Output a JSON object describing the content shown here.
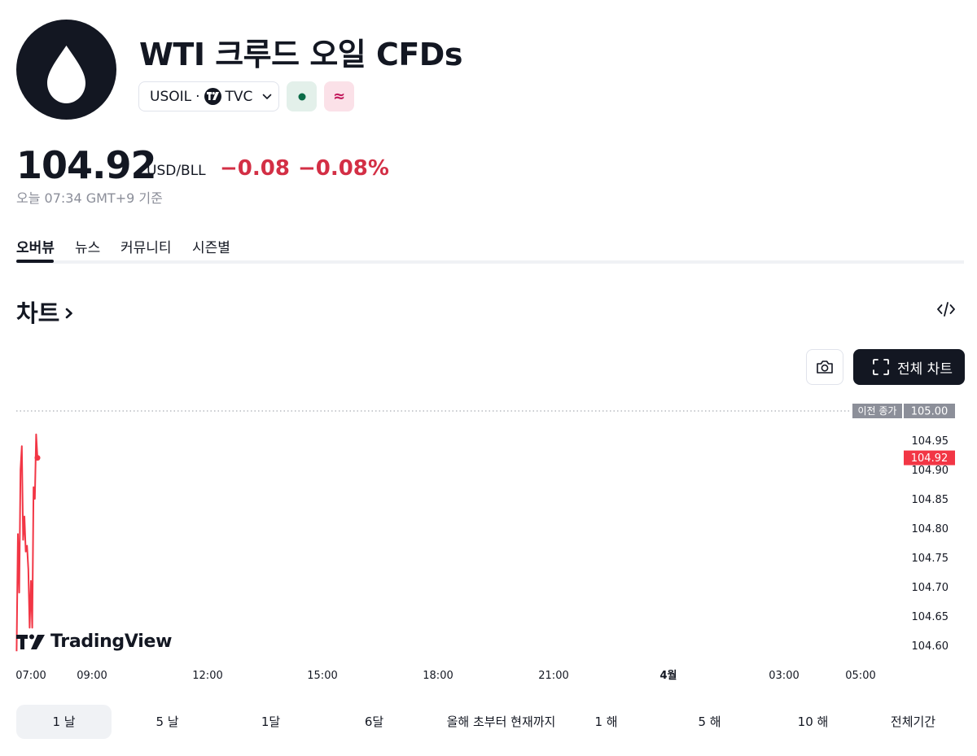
{
  "header": {
    "title": "WTI 크루드 오일 CFDs",
    "symbol": "USOIL",
    "separator": "·",
    "exchange": "TVC",
    "market_status_icon": "green-dot-icon",
    "delayed_icon": "approx-icon",
    "delayed_symbol": "≈"
  },
  "quote": {
    "price": "104.92",
    "currency": "USD/BLL",
    "change": "−0.08",
    "change_percent": "−0.08%",
    "as_of": "오늘 07:34 GMT+9 기준",
    "change_color": "#d32f45"
  },
  "tabs": [
    {
      "label": "오버뷰",
      "active": true
    },
    {
      "label": "뉴스",
      "active": false
    },
    {
      "label": "커뮤니티",
      "active": false
    },
    {
      "label": "시즌별",
      "active": false
    }
  ],
  "chart_section": {
    "title": "차트",
    "full_chart_label": "전체 차트"
  },
  "chart_data": {
    "type": "line",
    "price_axis": [
      "105.00",
      "104.95",
      "104.90",
      "104.85",
      "104.80",
      "104.75",
      "104.70",
      "104.65",
      "104.60"
    ],
    "time_axis": [
      {
        "label": "07:00",
        "bold": false
      },
      {
        "label": "09:00",
        "bold": false
      },
      {
        "label": "12:00",
        "bold": false
      },
      {
        "label": "15:00",
        "bold": false
      },
      {
        "label": "18:00",
        "bold": false
      },
      {
        "label": "21:00",
        "bold": false
      },
      {
        "label": "4월",
        "bold": true
      },
      {
        "label": "03:00",
        "bold": false
      },
      {
        "label": "05:00",
        "bold": false
      }
    ],
    "prev_close_label": "이전 종가",
    "prev_close_value": "105.00",
    "last_price_label": "104.92",
    "series": [
      {
        "color": "#f23645",
        "points": [
          {
            "x": "06:59",
            "y": 104.59
          },
          {
            "x": "07:00",
            "y": 104.79
          },
          {
            "x": "07:01",
            "y": 104.69
          },
          {
            "x": "07:02",
            "y": 104.9
          },
          {
            "x": "07:03",
            "y": 104.94
          },
          {
            "x": "07:04",
            "y": 104.78
          },
          {
            "x": "07:05",
            "y": 104.82
          },
          {
            "x": "07:06",
            "y": 104.76
          },
          {
            "x": "07:07",
            "y": 104.77
          },
          {
            "x": "07:08",
            "y": 104.73
          },
          {
            "x": "07:09",
            "y": 104.63
          },
          {
            "x": "07:10",
            "y": 104.71
          },
          {
            "x": "07:11",
            "y": 104.63
          },
          {
            "x": "07:12",
            "y": 104.87
          },
          {
            "x": "07:13",
            "y": 104.85
          },
          {
            "x": "07:14",
            "y": 104.96
          },
          {
            "x": "07:15",
            "y": 104.92
          }
        ]
      }
    ],
    "line_color": "#f23645",
    "ylim": [
      104.58,
      105.0
    ]
  },
  "branding": {
    "tv_logo_text": "TradingView"
  },
  "ranges": [
    {
      "label": "1 날",
      "active": true
    },
    {
      "label": "5 날",
      "active": false
    },
    {
      "label": "1달",
      "active": false
    },
    {
      "label": "6달",
      "active": false
    },
    {
      "label": "올해 초부터 현재까지",
      "active": false
    },
    {
      "label": "1 해",
      "active": false
    },
    {
      "label": "5 해",
      "active": false
    },
    {
      "label": "10 해",
      "active": false
    },
    {
      "label": "전체기간",
      "active": false
    }
  ]
}
